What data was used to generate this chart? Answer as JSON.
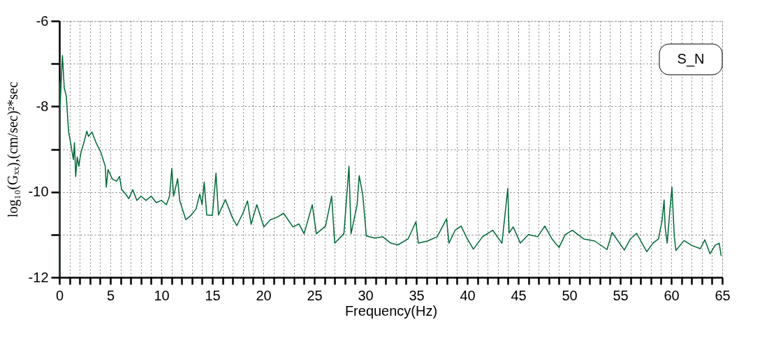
{
  "chart_data": {
    "type": "line",
    "xlabel": "Frequency(Hz)",
    "ylabel": "log₁₀(Gₓₓ),(cm/sec)²*sec",
    "annotations": [
      "S_N"
    ],
    "x": [
      0,
      0.02,
      0.07,
      0.2,
      0.3,
      0.48,
      0.68,
      0.9,
      1.14,
      1.37,
      1.48,
      1.6,
      1.75,
      1.9,
      2.1,
      2.4,
      2.69,
      2.85,
      3.2,
      3.6,
      4.06,
      4.5,
      4.6,
      4.77,
      5.2,
      5.6,
      5.9,
      6.1,
      6.5,
      6.8,
      7.2,
      7.6,
      8.0,
      8.5,
      9.0,
      9.5,
      10.0,
      10.5,
      10.8,
      11.03,
      11.2,
      11.6,
      11.8,
      12.4,
      12.9,
      13.4,
      13.77,
      14.0,
      14.2,
      14.45,
      15.0,
      15.36,
      15.6,
      16.28,
      16.96,
      17.4,
      18.0,
      18.45,
      18.8,
      19.36,
      20.05,
      20.7,
      21.3,
      21.99,
      22.9,
      23.5,
      24.0,
      24.8,
      25.2,
      26.1,
      26.7,
      27.0,
      27.9,
      28.4,
      28.6,
      29.2,
      29.4,
      29.75,
      30.1,
      30.9,
      31.7,
      32.5,
      33.2,
      34.2,
      34.96,
      35.2,
      36.1,
      37.05,
      37.97,
      38.2,
      38.8,
      39.4,
      40.0,
      40.6,
      41.5,
      42.5,
      43.4,
      43.97,
      44.1,
      44.5,
      45.2,
      46.0,
      46.9,
      47.6,
      48.3,
      49.0,
      49.6,
      50.3,
      51.4,
      52.5,
      53.7,
      54.2,
      55.4,
      56.0,
      56.6,
      57.6,
      58.2,
      58.75,
      59.1,
      59.3,
      59.4,
      59.6,
      59.9,
      60.07,
      60.3,
      60.46,
      61.25,
      62.0,
      62.85,
      63.3,
      63.8,
      64.3,
      64.7,
      64.9
    ],
    "series": [
      {
        "color": "#006837",
        "values": [
          -12,
          -7.44,
          -8.04,
          -7.3,
          -6.81,
          -7.57,
          -7.76,
          -8.58,
          -8.91,
          -9.24,
          -8.85,
          -9.64,
          -9.18,
          -9.4,
          -9.1,
          -8.85,
          -8.58,
          -8.7,
          -8.6,
          -8.85,
          -9.07,
          -9.4,
          -9.89,
          -9.48,
          -9.7,
          -9.75,
          -9.64,
          -9.94,
          -10.05,
          -10.16,
          -9.95,
          -10.2,
          -10.1,
          -10.2,
          -10.1,
          -10.25,
          -10.2,
          -10.3,
          -10.1,
          -9.45,
          -10.1,
          -9.69,
          -10.2,
          -10.65,
          -10.55,
          -10.4,
          -10.05,
          -10.3,
          -9.77,
          -10.54,
          -10.55,
          -9.56,
          -10.54,
          -10.18,
          -10.6,
          -10.79,
          -10.5,
          -10.21,
          -10.76,
          -10.3,
          -10.82,
          -10.65,
          -10.6,
          -10.5,
          -10.82,
          -10.75,
          -10.98,
          -10.3,
          -10.98,
          -10.8,
          -10.1,
          -11.2,
          -10.98,
          -9.4,
          -10.98,
          -10.3,
          -9.62,
          -10.07,
          -11.03,
          -11.08,
          -11.05,
          -11.2,
          -11.24,
          -11.1,
          -10.7,
          -11.2,
          -11.15,
          -11.05,
          -10.63,
          -11.2,
          -10.9,
          -10.8,
          -11.1,
          -11.34,
          -11.05,
          -10.9,
          -11.2,
          -9.92,
          -10.96,
          -10.82,
          -11.2,
          -11.0,
          -11.05,
          -10.8,
          -11.1,
          -11.3,
          -11.0,
          -10.9,
          -11.1,
          -11.15,
          -11.35,
          -10.95,
          -11.36,
          -11.1,
          -10.97,
          -11.4,
          -11.2,
          -11.1,
          -10.67,
          -10.19,
          -10.82,
          -11.2,
          -10.35,
          -9.89,
          -11.05,
          -11.37,
          -11.14,
          -11.25,
          -11.33,
          -11.12,
          -11.45,
          -11.25,
          -11.2,
          -11.5
        ]
      }
    ],
    "xlim": [
      0,
      65
    ],
    "xticks": [
      0,
      {
        "value": 1,
        "label": null
      },
      {
        "value": 2,
        "label": null
      },
      {
        "value": 3,
        "label": null
      },
      {
        "value": 4,
        "label": null
      },
      5,
      {
        "value": 6,
        "label": null
      },
      {
        "value": 7,
        "label": null
      },
      {
        "value": 8,
        "label": null
      },
      {
        "value": 9,
        "label": null
      },
      10,
      {
        "value": 11,
        "label": null
      },
      {
        "value": 12,
        "label": null
      },
      {
        "value": 13,
        "label": null
      },
      {
        "value": 14,
        "label": null
      },
      15,
      {
        "value": 16,
        "label": null
      },
      {
        "value": 17,
        "label": null
      },
      {
        "value": 18,
        "label": null
      },
      {
        "value": 19,
        "label": null
      },
      20,
      {
        "value": 21,
        "label": null
      },
      {
        "value": 22,
        "label": null
      },
      {
        "value": 23,
        "label": null
      },
      {
        "value": 24,
        "label": null
      },
      25,
      {
        "value": 26,
        "label": null
      },
      {
        "value": 27,
        "label": null
      },
      {
        "value": 28,
        "label": null
      },
      {
        "value": 29,
        "label": null
      },
      30,
      {
        "value": 31,
        "label": null
      },
      {
        "value": 32,
        "label": null
      },
      {
        "value": 33,
        "label": null
      },
      {
        "value": 34,
        "label": null
      },
      35,
      {
        "value": 36,
        "label": null
      },
      {
        "value": 37,
        "label": null
      },
      {
        "value": 38,
        "label": null
      },
      {
        "value": 39,
        "label": null
      },
      40,
      {
        "value": 41,
        "label": null
      },
      {
        "value": 42,
        "label": null
      },
      {
        "value": 43,
        "label": null
      },
      {
        "value": 44,
        "label": null
      },
      45,
      {
        "value": 46,
        "label": null
      },
      {
        "value": 47,
        "label": null
      },
      {
        "value": 48,
        "label": null
      },
      {
        "value": 49,
        "label": null
      },
      50,
      {
        "value": 51,
        "label": null
      },
      {
        "value": 52,
        "label": null
      },
      {
        "value": 53,
        "label": null
      },
      {
        "value": 54,
        "label": null
      },
      55,
      {
        "value": 56,
        "label": null
      },
      {
        "value": 57,
        "label": null
      },
      {
        "value": 58,
        "label": null
      },
      {
        "value": 59,
        "label": null
      },
      60,
      {
        "value": 61,
        "label": null
      },
      {
        "value": 62,
        "label": null
      },
      {
        "value": 63,
        "label": null
      },
      {
        "value": 64,
        "label": null
      },
      65
    ],
    "ylim": [
      -12,
      -6
    ],
    "yticks": [
      -6,
      {
        "value": -7,
        "label": null
      },
      -8,
      {
        "value": -9,
        "label": null
      },
      -10,
      {
        "value": -11,
        "label": null
      },
      -12
    ],
    "grid": true,
    "marker": "none",
    "line_style": "solid"
  }
}
